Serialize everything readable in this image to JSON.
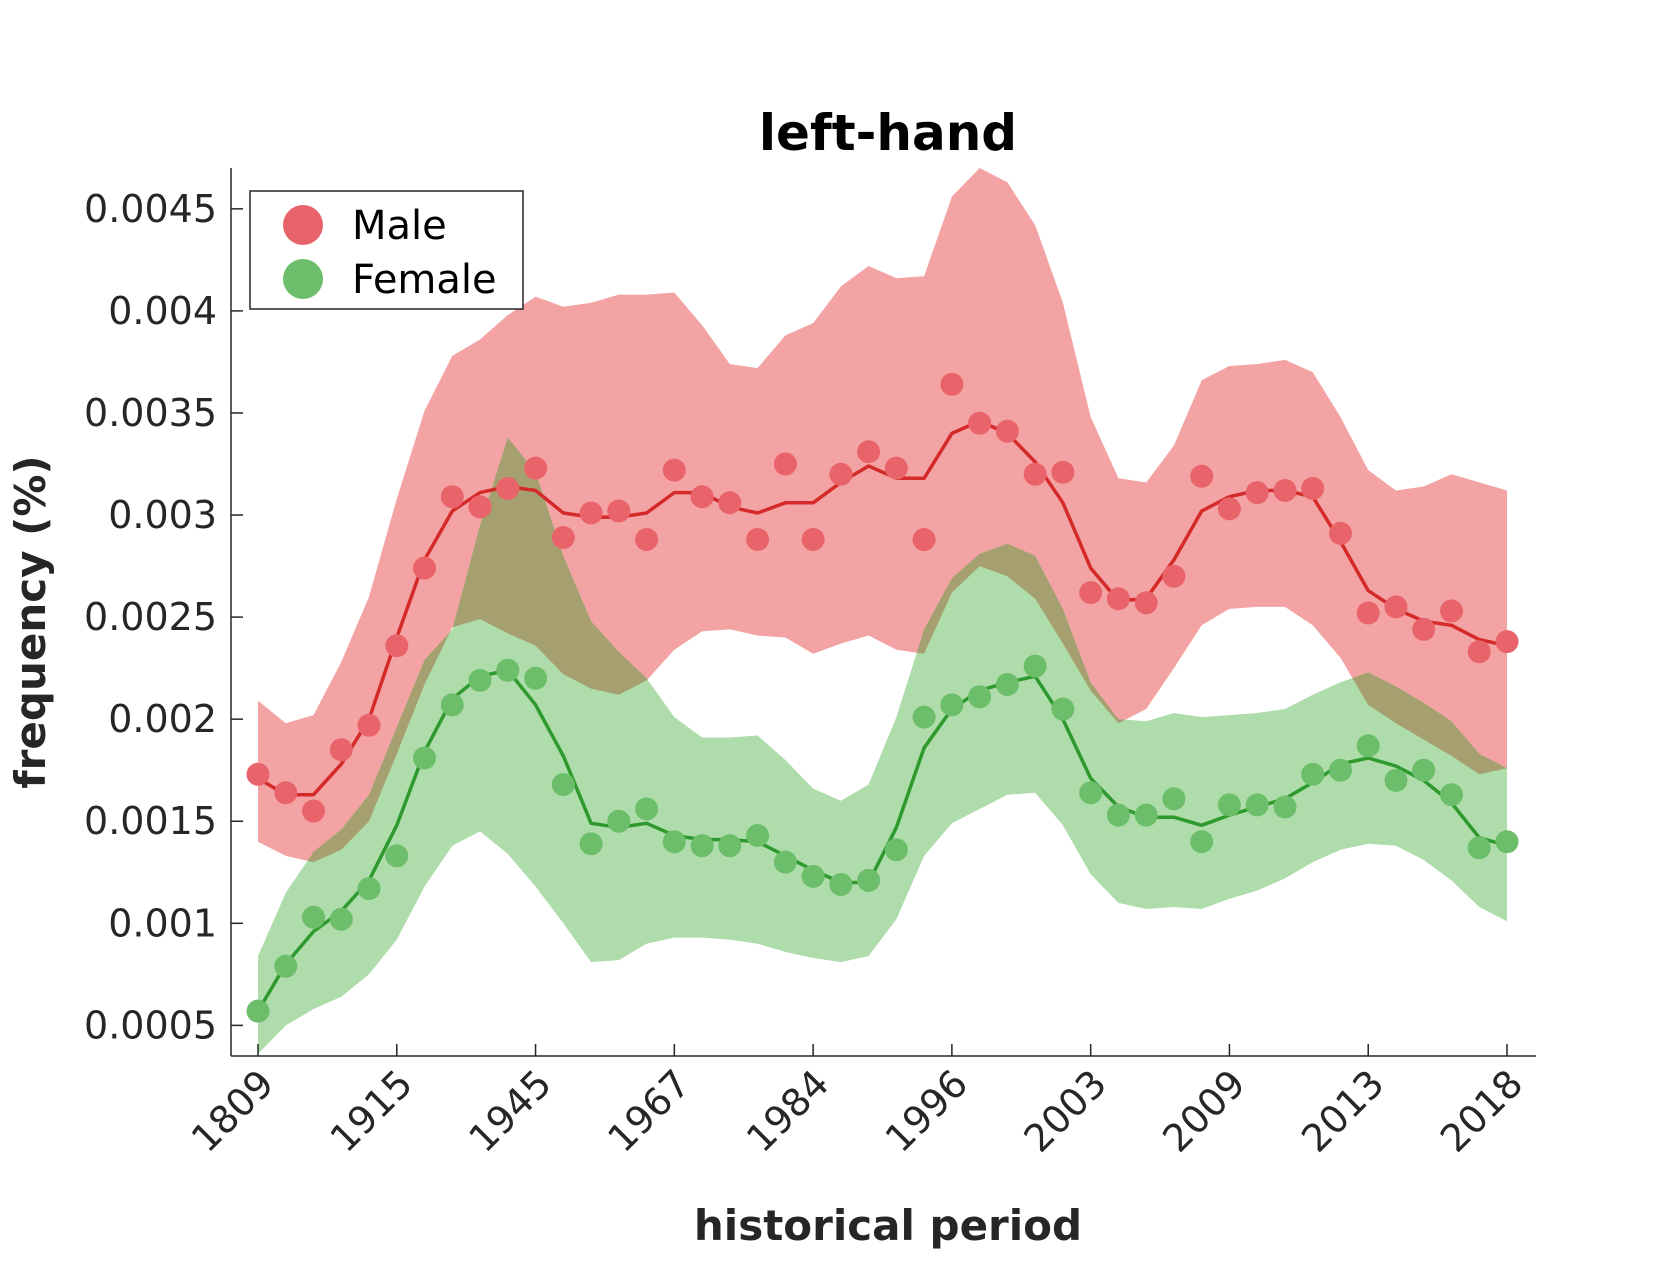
{
  "chart_data": {
    "type": "line",
    "title": "left-hand",
    "xlabel": "historical period",
    "ylabel": "frequency (%)",
    "x_tick_labels": [
      "1809",
      "1915",
      "1945",
      "1967",
      "1984",
      "1996",
      "2003",
      "2009",
      "2013",
      "2018"
    ],
    "y_tick_labels": [
      "0.0005",
      "0.001",
      "0.0015",
      "0.002",
      "0.0025",
      "0.003",
      "0.0035",
      "0.004",
      "0.0045"
    ],
    "y_ticks": [
      0.0005,
      0.001,
      0.0015,
      0.002,
      0.0025,
      0.003,
      0.0035,
      0.004,
      0.0045
    ],
    "ylim": [
      0.00035,
      0.0047
    ],
    "x_index_range": [
      0,
      45
    ],
    "legend_position": "top-left",
    "grid": false,
    "colors": {
      "male_point": "#E8646A",
      "male_line": "#D42A2A",
      "male_band": "#F4A3A5",
      "female_point": "#6CBE6A",
      "female_line": "#2E9A2E",
      "female_band": "#AEDCAA",
      "overlap_band": "#A6A070",
      "axis": "#262626"
    },
    "series": [
      {
        "name": "Male",
        "points": [
          0.00173,
          0.00164,
          0.00155,
          0.00185,
          0.00197,
          0.00236,
          0.00274,
          0.00309,
          0.00304,
          0.00313,
          0.00323,
          0.00289,
          0.00301,
          0.00302,
          0.00288,
          0.00322,
          0.00309,
          0.00306,
          0.00288,
          0.00325,
          0.00288,
          0.0032,
          0.00331,
          0.00323,
          0.00288,
          0.00364,
          0.00345,
          0.00341,
          0.0032,
          0.00321,
          0.00262,
          0.00259,
          0.00257,
          0.0027,
          0.00319,
          0.00303,
          0.00311,
          0.00312,
          0.00313,
          0.00291,
          0.00252,
          0.00255,
          0.00244,
          0.00253,
          0.00233,
          0.00238
        ],
        "trend": [
          0.00171,
          0.00163,
          0.00163,
          0.00178,
          0.002,
          0.0024,
          0.00278,
          0.00302,
          0.00311,
          0.00314,
          0.00312,
          0.00301,
          0.00299,
          0.00299,
          0.00301,
          0.00311,
          0.00311,
          0.00304,
          0.00301,
          0.00306,
          0.00306,
          0.00316,
          0.00324,
          0.00318,
          0.00318,
          0.0034,
          0.00346,
          0.0034,
          0.00326,
          0.00306,
          0.00274,
          0.00258,
          0.00259,
          0.00278,
          0.00302,
          0.00309,
          0.00312,
          0.00312,
          0.00309,
          0.00287,
          0.00263,
          0.00254,
          0.00248,
          0.00246,
          0.00239,
          0.00236
        ],
        "band_upper": [
          0.00209,
          0.00198,
          0.00202,
          0.00228,
          0.0026,
          0.00308,
          0.00351,
          0.00378,
          0.00386,
          0.00398,
          0.00407,
          0.00402,
          0.00404,
          0.00408,
          0.00408,
          0.00409,
          0.00393,
          0.00374,
          0.00372,
          0.00388,
          0.00394,
          0.00412,
          0.00422,
          0.00416,
          0.00417,
          0.00456,
          0.0047,
          0.00463,
          0.00442,
          0.00404,
          0.00348,
          0.00318,
          0.00316,
          0.00334,
          0.00366,
          0.00373,
          0.00374,
          0.00376,
          0.0037,
          0.00348,
          0.00322,
          0.00312,
          0.00314,
          0.0032,
          0.00316,
          0.00312
        ],
        "band_lower": [
          0.0014,
          0.00133,
          0.0013,
          0.00136,
          0.0015,
          0.00183,
          0.00217,
          0.00245,
          0.00249,
          0.00242,
          0.00236,
          0.00222,
          0.00215,
          0.00212,
          0.00219,
          0.00234,
          0.00243,
          0.00244,
          0.00241,
          0.0024,
          0.00232,
          0.00237,
          0.00241,
          0.00234,
          0.00232,
          0.00262,
          0.00275,
          0.0027,
          0.00259,
          0.00237,
          0.00214,
          0.00198,
          0.00205,
          0.00225,
          0.00246,
          0.00254,
          0.00255,
          0.00255,
          0.00246,
          0.0023,
          0.00207,
          0.00198,
          0.0019,
          0.00182,
          0.00173,
          0.00176
        ]
      },
      {
        "name": "Female",
        "points": [
          0.00057,
          0.00079,
          0.00103,
          0.00102,
          0.00117,
          0.00133,
          0.00181,
          0.00207,
          0.00219,
          0.00224,
          0.0022,
          0.00168,
          0.00139,
          0.0015,
          0.00156,
          0.0014,
          0.00138,
          0.00138,
          0.00143,
          0.0013,
          0.00123,
          0.00119,
          0.00121,
          0.00136,
          0.00201,
          0.00207,
          0.00211,
          0.00217,
          0.00226,
          0.00205,
          0.00164,
          0.00153,
          0.00153,
          0.00161,
          0.0014,
          0.00158,
          0.00158,
          0.00157,
          0.00173,
          0.00175,
          0.00187,
          0.0017,
          0.00175,
          0.00163,
          0.00137,
          0.0014
        ],
        "trend": [
          0.00057,
          0.0008,
          0.00096,
          0.00106,
          0.00121,
          0.00148,
          0.00184,
          0.0021,
          0.00221,
          0.00224,
          0.00207,
          0.00182,
          0.00149,
          0.00147,
          0.00149,
          0.00143,
          0.00141,
          0.00141,
          0.0014,
          0.00133,
          0.00126,
          0.0012,
          0.0012,
          0.00147,
          0.00186,
          0.00205,
          0.00214,
          0.00218,
          0.00221,
          0.002,
          0.00171,
          0.00157,
          0.00152,
          0.00152,
          0.00148,
          0.00153,
          0.00157,
          0.00161,
          0.00169,
          0.00178,
          0.00181,
          0.00177,
          0.0017,
          0.00159,
          0.00142,
          0.00138
        ],
        "band_upper": [
          0.00084,
          0.00115,
          0.00135,
          0.00146,
          0.00163,
          0.00196,
          0.00229,
          0.00244,
          0.00295,
          0.00338,
          0.00321,
          0.0028,
          0.00248,
          0.00233,
          0.0022,
          0.00201,
          0.00191,
          0.00191,
          0.00192,
          0.0018,
          0.00166,
          0.0016,
          0.00168,
          0.00201,
          0.00244,
          0.00269,
          0.00281,
          0.00286,
          0.0028,
          0.00254,
          0.00218,
          0.002,
          0.00199,
          0.00203,
          0.00201,
          0.00202,
          0.00203,
          0.00205,
          0.00212,
          0.00218,
          0.00223,
          0.00216,
          0.00208,
          0.00199,
          0.00183,
          0.00176
        ],
        "band_lower": [
          0.00036,
          0.0005,
          0.00058,
          0.00064,
          0.00075,
          0.00092,
          0.00118,
          0.00138,
          0.00145,
          0.00134,
          0.00118,
          0.001,
          0.00081,
          0.00082,
          0.0009,
          0.00093,
          0.00093,
          0.00092,
          0.0009,
          0.00086,
          0.00083,
          0.00081,
          0.00084,
          0.00102,
          0.00133,
          0.00149,
          0.00156,
          0.00163,
          0.00164,
          0.00148,
          0.00124,
          0.0011,
          0.00107,
          0.00108,
          0.00107,
          0.00112,
          0.00116,
          0.00122,
          0.0013,
          0.00136,
          0.00139,
          0.00138,
          0.00131,
          0.00121,
          0.00108,
          0.00101
        ]
      }
    ]
  }
}
